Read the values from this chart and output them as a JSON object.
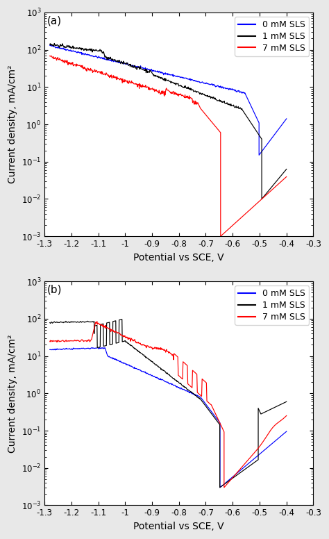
{
  "fig_width": 4.74,
  "fig_height": 7.76,
  "dpi": 100,
  "background_color": "#e8e8e8",
  "panel_a": {
    "label": "(a)",
    "xlabel": "Potential vs SCE, V",
    "ylabel": "Current density, mA/cm²",
    "xlim": [
      -1.3,
      -0.3
    ],
    "xticks": [
      -1.3,
      -1.2,
      -1.1,
      -1.0,
      -0.9,
      -0.8,
      -0.7,
      -0.6,
      -0.5,
      -0.4,
      -0.3
    ],
    "xtick_labels": [
      "-1.3",
      "-1.2",
      "-1.1",
      "-1",
      "-0.9",
      "-0.8",
      "-0.7",
      "-0.6",
      "-0.5",
      "-0.4",
      "-0.3"
    ],
    "ylim": [
      0.001,
      1000
    ],
    "legend": [
      "0 mM SLS",
      "1 mM SLS",
      "7 mM SLS"
    ],
    "colors": [
      "blue",
      "black",
      "red"
    ]
  },
  "panel_b": {
    "label": "(b)",
    "xlabel": "Potential vs SCE, V",
    "ylabel": "Current density, mA/cm²",
    "xlim": [
      -1.3,
      -0.3
    ],
    "xticks": [
      -1.3,
      -1.2,
      -1.1,
      -1.0,
      -0.9,
      -0.8,
      -0.7,
      -0.6,
      -0.5,
      -0.4,
      -0.3
    ],
    "xtick_labels": [
      "-1.3",
      "-1.2",
      "-1.1",
      "-1",
      "-0.9",
      "-0.8",
      "-0.7",
      "-0.6",
      "-0.5",
      "-0.4",
      "-0.3"
    ],
    "ylim": [
      0.001,
      1000
    ],
    "legend": [
      "0 mM SLS",
      "1 mM SLS",
      "7 mM SLS"
    ],
    "colors": [
      "blue",
      "black",
      "red"
    ]
  }
}
